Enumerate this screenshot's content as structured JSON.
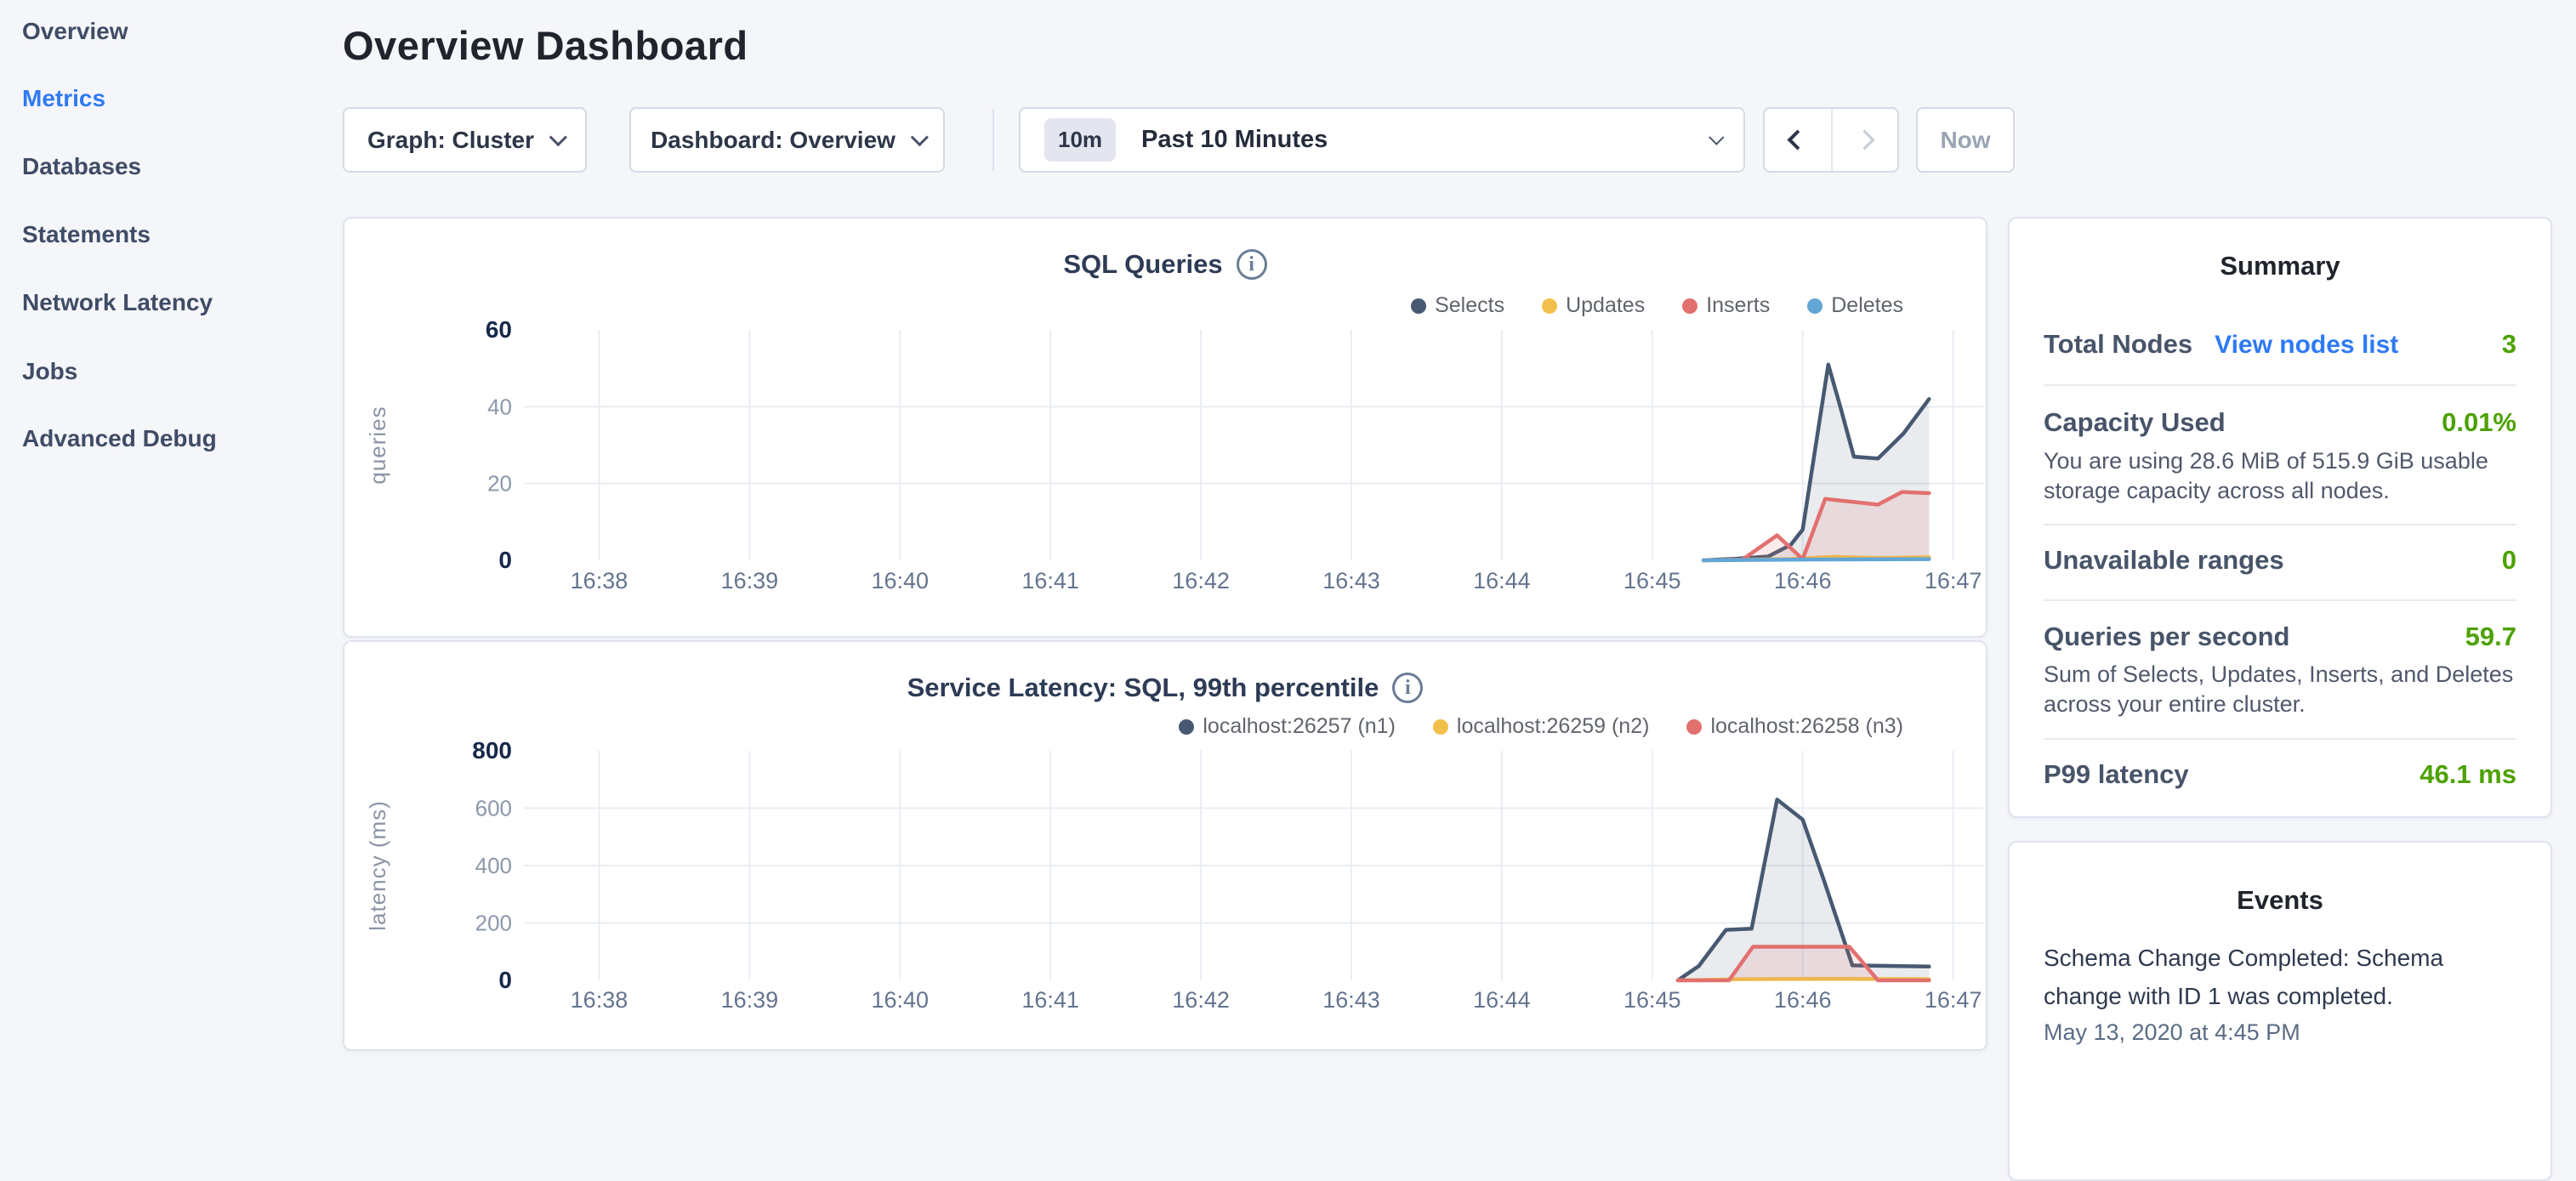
{
  "sidebar": {
    "items": [
      {
        "label": "Overview",
        "active": false
      },
      {
        "label": "Metrics",
        "active": true
      },
      {
        "label": "Databases",
        "active": false
      },
      {
        "label": "Statements",
        "active": false
      },
      {
        "label": "Network Latency",
        "active": false
      },
      {
        "label": "Jobs",
        "active": false
      },
      {
        "label": "Advanced Debug",
        "active": false
      }
    ]
  },
  "header": {
    "title": "Overview Dashboard"
  },
  "controls": {
    "graph_dropdown": "Graph: Cluster",
    "dashboard_dropdown": "Dashboard: Overview",
    "time_badge": "10m",
    "time_label": "Past 10 Minutes",
    "now_label": "Now"
  },
  "summary": {
    "title": "Summary",
    "rows": [
      {
        "label": "Total Nodes",
        "link": "View nodes list",
        "value": "3"
      },
      {
        "label": "Capacity Used",
        "value": "0.01%",
        "subtext": "You are using 28.6 MiB of 515.9 GiB usable storage capacity across all nodes."
      },
      {
        "label": "Unavailable ranges",
        "value": "0"
      },
      {
        "label": "Queries per second",
        "value": "59.7",
        "subtext": "Sum of Selects, Updates, Inserts, and Deletes across your entire cluster."
      },
      {
        "label": "P99 latency",
        "value": "46.1 ms"
      }
    ],
    "value_color": "#4da100",
    "link_color": "#2f7af5"
  },
  "events": {
    "title": "Events",
    "items": [
      {
        "text": "Schema Change Completed: Schema change with ID 1 was completed.",
        "timestamp": "May 13, 2020 at 4:45 PM"
      }
    ]
  },
  "chart_data": [
    {
      "type": "area",
      "title": "SQL Queries",
      "ylabel": "queries",
      "ylim": [
        0,
        60
      ],
      "yticks": [
        0,
        20,
        40,
        60
      ],
      "xlim": [
        37.5,
        47.2
      ],
      "xticks": [
        38,
        39,
        40,
        41,
        42,
        43,
        44,
        45,
        46,
        47
      ],
      "xtick_labels": [
        "16:38",
        "16:39",
        "16:40",
        "16:41",
        "16:42",
        "16:43",
        "16:44",
        "16:45",
        "16:46",
        "16:47"
      ],
      "grid": true,
      "legend_position": "top-right",
      "series": [
        {
          "name": "Selects",
          "color": "#475972",
          "fill": "rgba(71,89,114,0.12)",
          "points": [
            [
              45.34,
              0
            ],
            [
              45.55,
              0.4
            ],
            [
              45.77,
              1
            ],
            [
              45.92,
              4
            ],
            [
              46.0,
              8
            ],
            [
              46.17,
              51
            ],
            [
              46.25,
              40
            ],
            [
              46.34,
              27
            ],
            [
              46.5,
              26.5
            ],
            [
              46.67,
              33
            ],
            [
              46.84,
              42
            ]
          ]
        },
        {
          "name": "Updates",
          "color": "#f2c04a",
          "fill": "rgba(242,192,74,0.15)",
          "points": [
            [
              45.34,
              0
            ],
            [
              45.9,
              0.3
            ],
            [
              46.2,
              0.9
            ],
            [
              46.5,
              0.6
            ],
            [
              46.84,
              0.8
            ]
          ]
        },
        {
          "name": "Inserts",
          "color": "#e2706e",
          "fill": "rgba(226,112,110,0.14)",
          "points": [
            [
              45.34,
              0
            ],
            [
              45.6,
              0.2
            ],
            [
              45.83,
              6.5
            ],
            [
              46.0,
              0.3
            ],
            [
              46.15,
              16
            ],
            [
              46.5,
              14.5
            ],
            [
              46.66,
              17.8
            ],
            [
              46.84,
              17.5
            ]
          ]
        },
        {
          "name": "Deletes",
          "color": "#61a6d6",
          "fill": "rgba(97,166,214,0.15)",
          "points": [
            [
              45.34,
              0
            ],
            [
              46.0,
              0.2
            ],
            [
              46.84,
              0.3
            ]
          ]
        }
      ]
    },
    {
      "type": "area",
      "title": "Service Latency: SQL, 99th percentile",
      "ylabel": "latency (ms)",
      "ylim": [
        0,
        800
      ],
      "yticks": [
        0,
        200,
        400,
        600,
        800
      ],
      "xlim": [
        37.5,
        47.2
      ],
      "xticks": [
        38,
        39,
        40,
        41,
        42,
        43,
        44,
        45,
        46,
        47
      ],
      "xtick_labels": [
        "16:38",
        "16:39",
        "16:40",
        "16:41",
        "16:42",
        "16:43",
        "16:44",
        "16:45",
        "16:46",
        "16:47"
      ],
      "grid": true,
      "legend_position": "top-right",
      "series": [
        {
          "name": "localhost:26257 (n1)",
          "color": "#475972",
          "fill": "rgba(71,89,114,0.12)",
          "points": [
            [
              45.17,
              0
            ],
            [
              45.31,
              50
            ],
            [
              45.49,
              176
            ],
            [
              45.66,
              180
            ],
            [
              45.83,
              630
            ],
            [
              46.0,
              560
            ],
            [
              46.14,
              350
            ],
            [
              46.33,
              52
            ],
            [
              46.6,
              50
            ],
            [
              46.84,
              48
            ]
          ]
        },
        {
          "name": "localhost:26259 (n2)",
          "color": "#f2c04a",
          "fill": "rgba(242,192,74,0.15)",
          "points": [
            [
              45.17,
              0
            ],
            [
              45.6,
              4
            ],
            [
              46.2,
              5
            ],
            [
              46.84,
              4
            ]
          ]
        },
        {
          "name": "localhost:26258 (n3)",
          "color": "#e2706e",
          "fill": "rgba(226,112,110,0.14)",
          "points": [
            [
              45.17,
              0
            ],
            [
              45.51,
              0
            ],
            [
              45.67,
              117
            ],
            [
              46.31,
              117
            ],
            [
              46.5,
              0
            ],
            [
              46.84,
              0
            ]
          ]
        }
      ]
    }
  ]
}
